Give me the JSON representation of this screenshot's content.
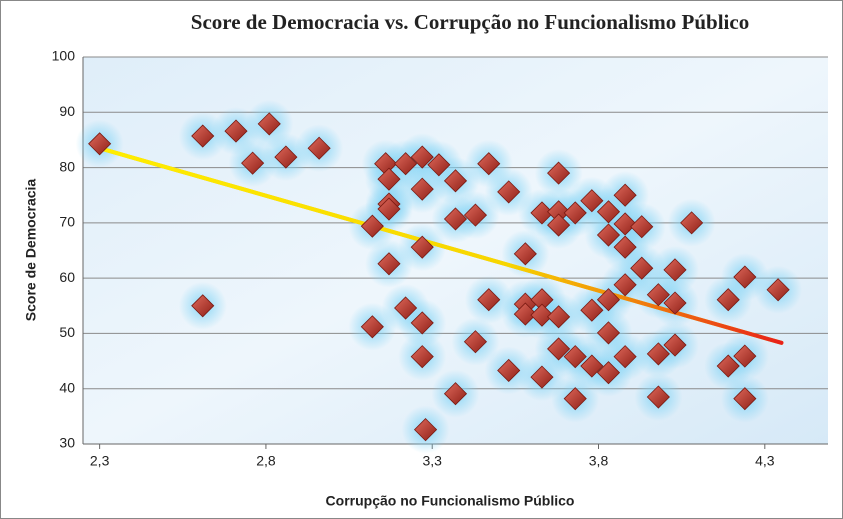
{
  "chart_data": {
    "type": "scatter",
    "title": "Score de Democracia vs. Corrupção   no Funcionalismo Público",
    "x_label": "Corrupção  no Funcionalismo Público",
    "y_label": "Score de Democracia",
    "xlim": [
      2.25,
      4.49
    ],
    "ylim": [
      30,
      100
    ],
    "xticks": [
      {
        "value": 2.3,
        "label": "2,3"
      },
      {
        "value": 2.8,
        "label": "2,8"
      },
      {
        "value": 3.3,
        "label": "3,3"
      },
      {
        "value": 3.8,
        "label": "3,8"
      },
      {
        "value": 4.3,
        "label": "4,3"
      }
    ],
    "yticks": [
      30,
      40,
      50,
      60,
      70,
      80,
      90,
      100
    ],
    "grid": true,
    "color": "#c0392b",
    "x": [
      2.3,
      2.61,
      2.71,
      2.81,
      2.76,
      2.86,
      2.96,
      2.61,
      3.12,
      3.12,
      3.16,
      3.17,
      3.17,
      3.17,
      3.17,
      3.22,
      3.22,
      3.27,
      3.27,
      3.27,
      3.27,
      3.27,
      3.28,
      3.32,
      3.37,
      3.37,
      3.43,
      3.43,
      3.37,
      3.47,
      3.47,
      3.53,
      3.53,
      3.58,
      3.58,
      3.58,
      3.63,
      3.63,
      3.63,
      3.63,
      3.68,
      3.68,
      3.68,
      3.68,
      3.68,
      3.73,
      3.73,
      3.73,
      3.78,
      3.78,
      3.78,
      3.83,
      3.83,
      3.83,
      3.83,
      3.83,
      3.88,
      3.88,
      3.88,
      3.88,
      3.88,
      3.93,
      3.93,
      3.98,
      3.98,
      3.98,
      4.03,
      4.03,
      4.03,
      4.08,
      4.19,
      4.19,
      4.24,
      4.24,
      4.24,
      4.34
    ],
    "y": [
      84.3,
      85.7,
      86.6,
      87.9,
      80.8,
      81.9,
      83.5,
      55,
      69.4,
      51.2,
      80.7,
      77.9,
      73.4,
      72.5,
      62.6,
      80.7,
      54.6,
      81.9,
      76.1,
      65.6,
      51.9,
      45.8,
      32.6,
      80.5,
      77.6,
      70.7,
      71.4,
      48.5,
      39.1,
      80.7,
      56.1,
      75.6,
      43.3,
      64.4,
      55.3,
      53.5,
      71.8,
      56.1,
      53.3,
      42.1,
      79.0,
      72.0,
      69.6,
      53.0,
      47.2,
      71.8,
      45.8,
      38.2,
      74.0,
      54.2,
      44.1,
      72.0,
      67.8,
      56.1,
      50.1,
      42.9,
      75.0,
      69.8,
      65.6,
      58.8,
      45.8,
      69.3,
      61.8,
      57.0,
      46.3,
      38.5,
      61.5,
      55.5,
      47.9,
      70.0,
      56.1,
      44.1,
      60.2,
      45.9,
      38.2,
      57.9
    ],
    "trendline": {
      "x": [
        2.3,
        4.35
      ],
      "y": [
        83.5,
        48.3
      ]
    }
  }
}
